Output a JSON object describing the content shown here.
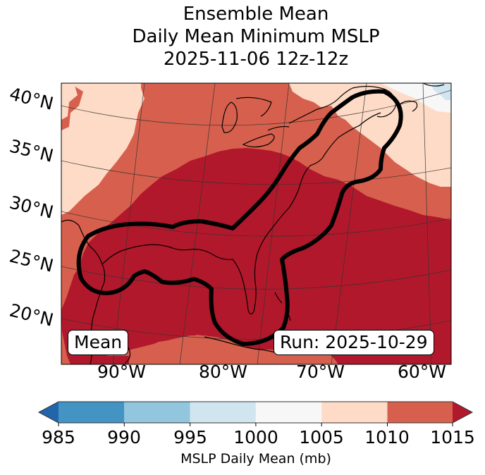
{
  "title": {
    "line1": "Ensemble Mean",
    "line2": "Daily Mean Minimum MSLP",
    "line3": "2025-11-06 12z-12z"
  },
  "map": {
    "lat_labels": [
      "40°N",
      "35°N",
      "30°N",
      "25°N",
      "20°N"
    ],
    "lon_labels": [
      "90°W",
      "80°W",
      "70°W",
      "60°W"
    ],
    "annotations": {
      "left_box": "Mean",
      "right_box": "Run: 2025-10-29"
    },
    "contour_description": "Thick black contour enclosing Gulf of Mexico, Florida and US East Coast to Nova Scotia"
  },
  "colorbar": {
    "label": "MSLP Daily Mean (mb)",
    "ticks": [
      "985",
      "990",
      "995",
      "1000",
      "1005",
      "1010",
      "1015"
    ],
    "colors": {
      "under": "#2166ac",
      "985-990": "#4393c3",
      "990-995": "#92c5de",
      "995-1000": "#d1e5f0",
      "1000-1005": "#f7f7f7",
      "1005-1010": "#fddbc7",
      "1010-1015": "#d6604d",
      "over": "#b2182b"
    },
    "extend": "both"
  }
}
